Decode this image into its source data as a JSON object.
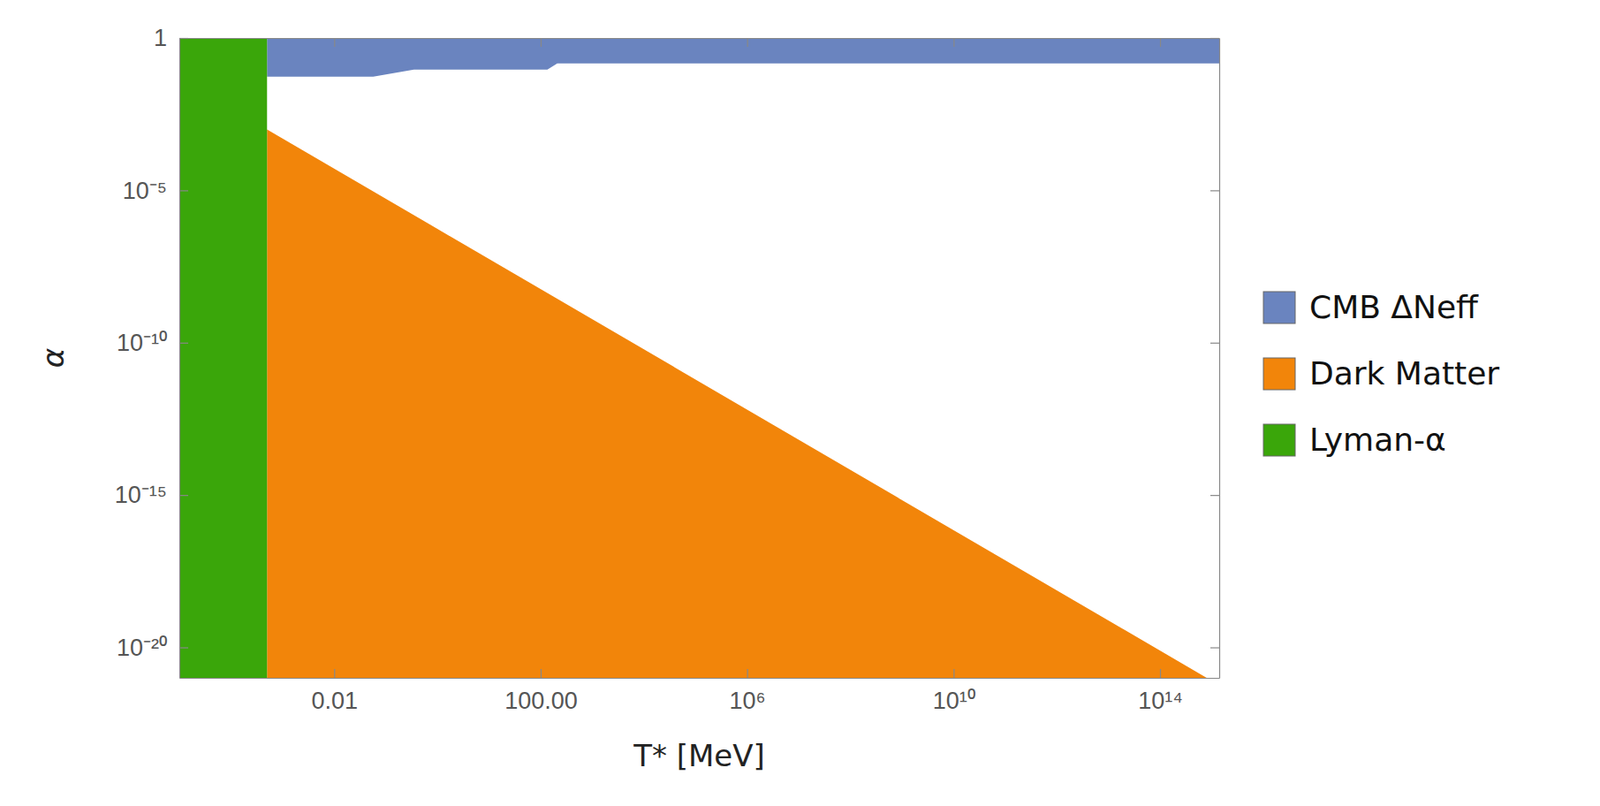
{
  "chart_data": {
    "type": "area",
    "x_label": "T* [MeV]",
    "y_label": "α",
    "log": true,
    "legend": "right",
    "xlim": [
      1e-05,
      1400000000000000
    ],
    "ylim": [
      1e-21,
      1
    ],
    "xticks": [
      0.01,
      {
        "value": 100,
        "label": "100.00"
      },
      {
        "value": 1000000,
        "label": "10⁶"
      },
      {
        "value": 10000000000,
        "label": "10¹⁰"
      },
      {
        "value": 100000000000000,
        "label": "10¹⁴"
      }
    ],
    "yticks": [
      1,
      {
        "value": 1e-05,
        "label": "10⁻⁵"
      },
      {
        "value": 1e-10,
        "label": "10⁻¹⁰"
      },
      {
        "value": 1e-15,
        "label": "10⁻¹⁵"
      },
      {
        "value": 1e-20,
        "label": "10⁻²⁰"
      }
    ],
    "series": [
      {
        "name": "CMB ΔNeff",
        "color": "#6a84bf",
        "x": [
          0.0005,
          0.0005,
          0.057,
          0.35,
          135,
          210,
          1400000000000000,
          1400000000000000
        ],
        "values": [
          1,
          0.054,
          0.054,
          0.092,
          0.092,
          0.146,
          0.146,
          1
        ]
      },
      {
        "name": "Dark Matter",
        "color": "#f2850a",
        "x": [
          0.0005,
          800000000000000,
          0.0005
        ],
        "values": [
          0.001,
          1e-21,
          1e-21
        ]
      },
      {
        "name": "Lyman-α",
        "color": "#3aa60a",
        "x": [
          1e-05,
          0.0005,
          0.0005,
          1e-05
        ],
        "values": [
          1,
          1,
          1e-21,
          1e-21
        ]
      }
    ]
  }
}
